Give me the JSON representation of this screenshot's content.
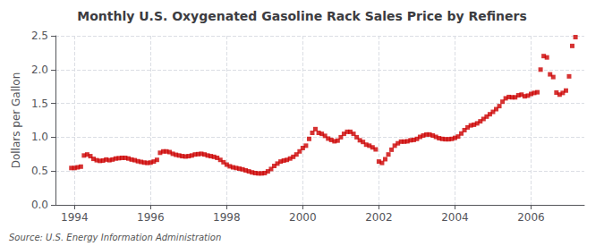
{
  "chart_data": {
    "type": "scatter",
    "title": "Monthly U.S. Oxygenated Gasoline Rack Sales Price by Refiners",
    "ylabel": "Dollars per Gallon",
    "source": "Source: U.S. Energy Information Administration",
    "color": "#cc0000",
    "marker": "square",
    "grid": true,
    "xlim": [
      1993.5,
      2007.4
    ],
    "xticks": [
      1994,
      1996,
      1998,
      2000,
      2002,
      2004,
      2006
    ],
    "ylim": [
      0.0,
      2.5
    ],
    "yticks": [
      {
        "value": 0.0,
        "label": "0.0"
      },
      0.5,
      {
        "value": 1.0,
        "label": "1.0"
      },
      1.5,
      {
        "value": 2.0,
        "label": "2.0"
      },
      2.5
    ],
    "x": [
      1993.917,
      1994.0,
      1994.083,
      1994.167,
      1994.25,
      1994.333,
      1994.417,
      1994.5,
      1994.583,
      1994.667,
      1994.75,
      1994.833,
      1994.917,
      1995.0,
      1995.083,
      1995.167,
      1995.25,
      1995.333,
      1995.417,
      1995.5,
      1995.583,
      1995.667,
      1995.75,
      1995.833,
      1995.917,
      1996.0,
      1996.083,
      1996.167,
      1996.25,
      1996.333,
      1996.417,
      1996.5,
      1996.583,
      1996.667,
      1996.75,
      1996.833,
      1996.917,
      1997.0,
      1997.083,
      1997.167,
      1997.25,
      1997.333,
      1997.417,
      1997.5,
      1997.583,
      1997.667,
      1997.75,
      1997.833,
      1997.917,
      1998.0,
      1998.083,
      1998.167,
      1998.25,
      1998.333,
      1998.417,
      1998.5,
      1998.583,
      1998.667,
      1998.75,
      1998.833,
      1998.917,
      1999.0,
      1999.083,
      1999.167,
      1999.25,
      1999.333,
      1999.417,
      1999.5,
      1999.583,
      1999.667,
      1999.75,
      1999.833,
      1999.917,
      2000.0,
      2000.083,
      2000.167,
      2000.25,
      2000.333,
      2000.417,
      2000.5,
      2000.583,
      2000.667,
      2000.75,
      2000.833,
      2000.917,
      2001.0,
      2001.083,
      2001.167,
      2001.25,
      2001.333,
      2001.417,
      2001.5,
      2001.583,
      2001.667,
      2001.75,
      2001.833,
      2001.917,
      2002.0,
      2002.083,
      2002.167,
      2002.25,
      2002.333,
      2002.417,
      2002.5,
      2002.583,
      2002.667,
      2002.75,
      2002.833,
      2002.917,
      2003.0,
      2003.083,
      2003.167,
      2003.25,
      2003.333,
      2003.417,
      2003.5,
      2003.583,
      2003.667,
      2003.75,
      2003.833,
      2003.917,
      2004.0,
      2004.083,
      2004.167,
      2004.25,
      2004.333,
      2004.417,
      2004.5,
      2004.583,
      2004.667,
      2004.75,
      2004.833,
      2004.917,
      2005.0,
      2005.083,
      2005.167,
      2005.25,
      2005.333,
      2005.417,
      2005.5,
      2005.583,
      2005.667,
      2005.75,
      2005.833,
      2005.917,
      2006.0,
      2006.083,
      2006.167,
      2006.25,
      2006.333,
      2006.417,
      2006.5,
      2006.583,
      2006.667,
      2006.75,
      2006.833,
      2006.917,
      2007.0,
      2007.083,
      2007.167
    ],
    "values": [
      0.545,
      0.545,
      0.555,
      0.565,
      0.73,
      0.745,
      0.72,
      0.68,
      0.66,
      0.65,
      0.655,
      0.67,
      0.66,
      0.67,
      0.685,
      0.69,
      0.695,
      0.695,
      0.685,
      0.67,
      0.66,
      0.645,
      0.635,
      0.625,
      0.62,
      0.625,
      0.64,
      0.665,
      0.77,
      0.79,
      0.79,
      0.78,
      0.755,
      0.74,
      0.73,
      0.72,
      0.715,
      0.72,
      0.73,
      0.745,
      0.75,
      0.755,
      0.745,
      0.73,
      0.72,
      0.71,
      0.695,
      0.665,
      0.63,
      0.595,
      0.57,
      0.555,
      0.545,
      0.535,
      0.525,
      0.51,
      0.495,
      0.48,
      0.47,
      0.465,
      0.465,
      0.47,
      0.495,
      0.53,
      0.575,
      0.61,
      0.64,
      0.655,
      0.665,
      0.685,
      0.71,
      0.745,
      0.79,
      0.84,
      0.875,
      0.975,
      1.065,
      1.12,
      1.065,
      1.05,
      1.02,
      0.98,
      0.96,
      0.94,
      0.95,
      1.0,
      1.05,
      1.08,
      1.08,
      1.05,
      1.0,
      0.955,
      0.93,
      0.89,
      0.875,
      0.85,
      0.82,
      0.64,
      0.62,
      0.675,
      0.745,
      0.815,
      0.875,
      0.91,
      0.935,
      0.935,
      0.94,
      0.955,
      0.96,
      0.975,
      1.005,
      1.025,
      1.04,
      1.04,
      1.025,
      1.005,
      0.985,
      0.975,
      0.97,
      0.97,
      0.975,
      0.99,
      1.01,
      1.055,
      1.105,
      1.145,
      1.175,
      1.185,
      1.205,
      1.235,
      1.27,
      1.305,
      1.34,
      1.375,
      1.415,
      1.46,
      1.525,
      1.575,
      1.595,
      1.59,
      1.59,
      1.62,
      1.63,
      1.605,
      1.615,
      1.64,
      1.655,
      1.665,
      2.0,
      2.2,
      2.18,
      1.93,
      1.89,
      1.66,
      1.63,
      1.655,
      1.69,
      1.9,
      2.35,
      2.48
    ]
  }
}
